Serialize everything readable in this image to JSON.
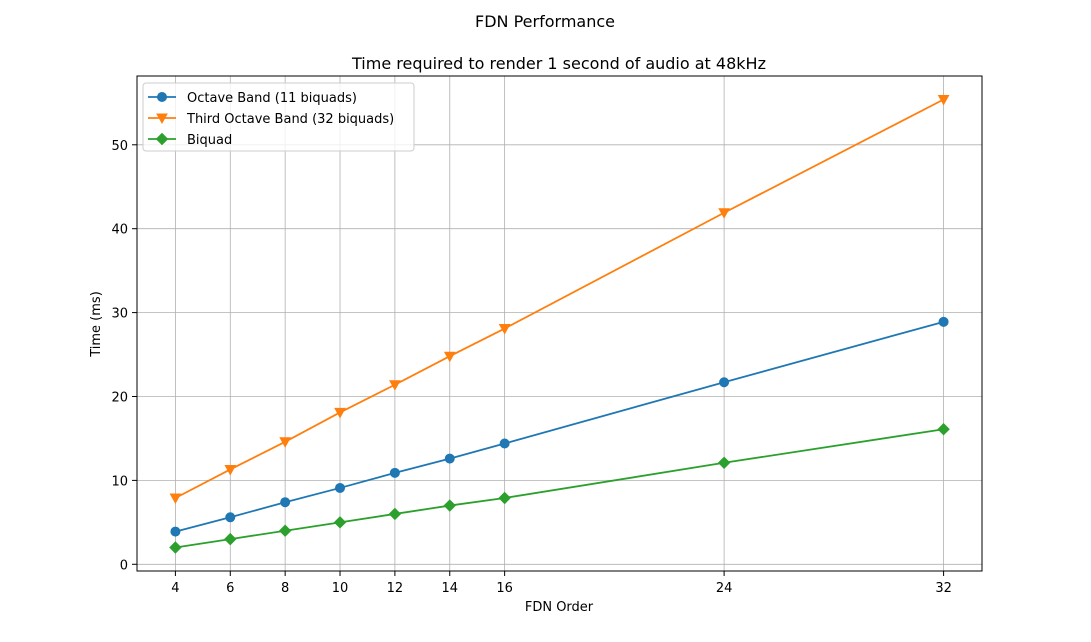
{
  "chart_data": {
    "type": "line",
    "title": "FDN Performance",
    "subtitle": "Time required to render 1 second of audio at 48kHz",
    "xlabel": "FDN Order",
    "ylabel": "Time (ms)",
    "x": [
      4,
      6,
      8,
      10,
      12,
      14,
      16,
      24,
      32
    ],
    "xticks": [
      "4",
      "6",
      "8",
      "10",
      "12",
      "14",
      "16",
      "24",
      "32"
    ],
    "xlim": [
      2.6,
      33.4
    ],
    "yticks": [
      0,
      10,
      20,
      30,
      40,
      50
    ],
    "ylim": [
      -0.8,
      58.2
    ],
    "grid": true,
    "legend_position": "upper-left",
    "series": [
      {
        "name": "Octave Band (11 biquads)",
        "color": "#1f77b4",
        "marker": "circle",
        "values": [
          3.9,
          5.6,
          7.4,
          9.1,
          10.9,
          12.6,
          14.4,
          21.7,
          28.9
        ]
      },
      {
        "name": "Third Octave Band (32 biquads)",
        "color": "#ff7f0e",
        "marker": "triangle-down",
        "values": [
          7.9,
          11.3,
          14.6,
          18.1,
          21.4,
          24.8,
          28.1,
          41.9,
          55.4
        ]
      },
      {
        "name": "Biquad",
        "color": "#2ca02c",
        "marker": "diamond",
        "values": [
          2.0,
          3.0,
          4.0,
          5.0,
          6.0,
          7.0,
          7.9,
          12.1,
          16.1
        ]
      }
    ]
  }
}
